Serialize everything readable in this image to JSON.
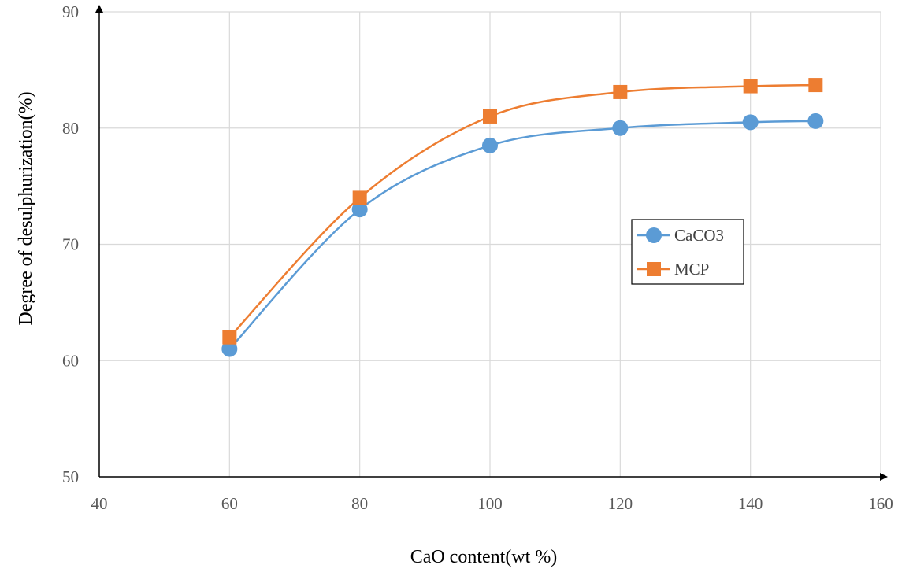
{
  "chart_data": {
    "type": "line",
    "title": "",
    "xlabel": "CaO content(wt %)",
    "ylabel": "Degree of desulphurization(%)",
    "xlim": [
      40,
      160
    ],
    "ylim": [
      50,
      90
    ],
    "xticks": [
      40,
      60,
      80,
      100,
      120,
      140,
      160
    ],
    "yticks": [
      50,
      60,
      70,
      80,
      90
    ],
    "grid": true,
    "smooth": true,
    "legend_position": "right-center",
    "series": [
      {
        "name": "CaCO3",
        "color": "#5b9bd5",
        "marker": "circle",
        "x": [
          60,
          80,
          100,
          120,
          140,
          150
        ],
        "values": [
          61,
          73,
          78.5,
          80,
          80.5,
          80.6
        ]
      },
      {
        "name": "MCP",
        "color": "#ed7d31",
        "marker": "square",
        "x": [
          60,
          80,
          100,
          120,
          140,
          150
        ],
        "values": [
          62,
          74,
          81,
          83.1,
          83.6,
          83.7
        ]
      }
    ]
  }
}
